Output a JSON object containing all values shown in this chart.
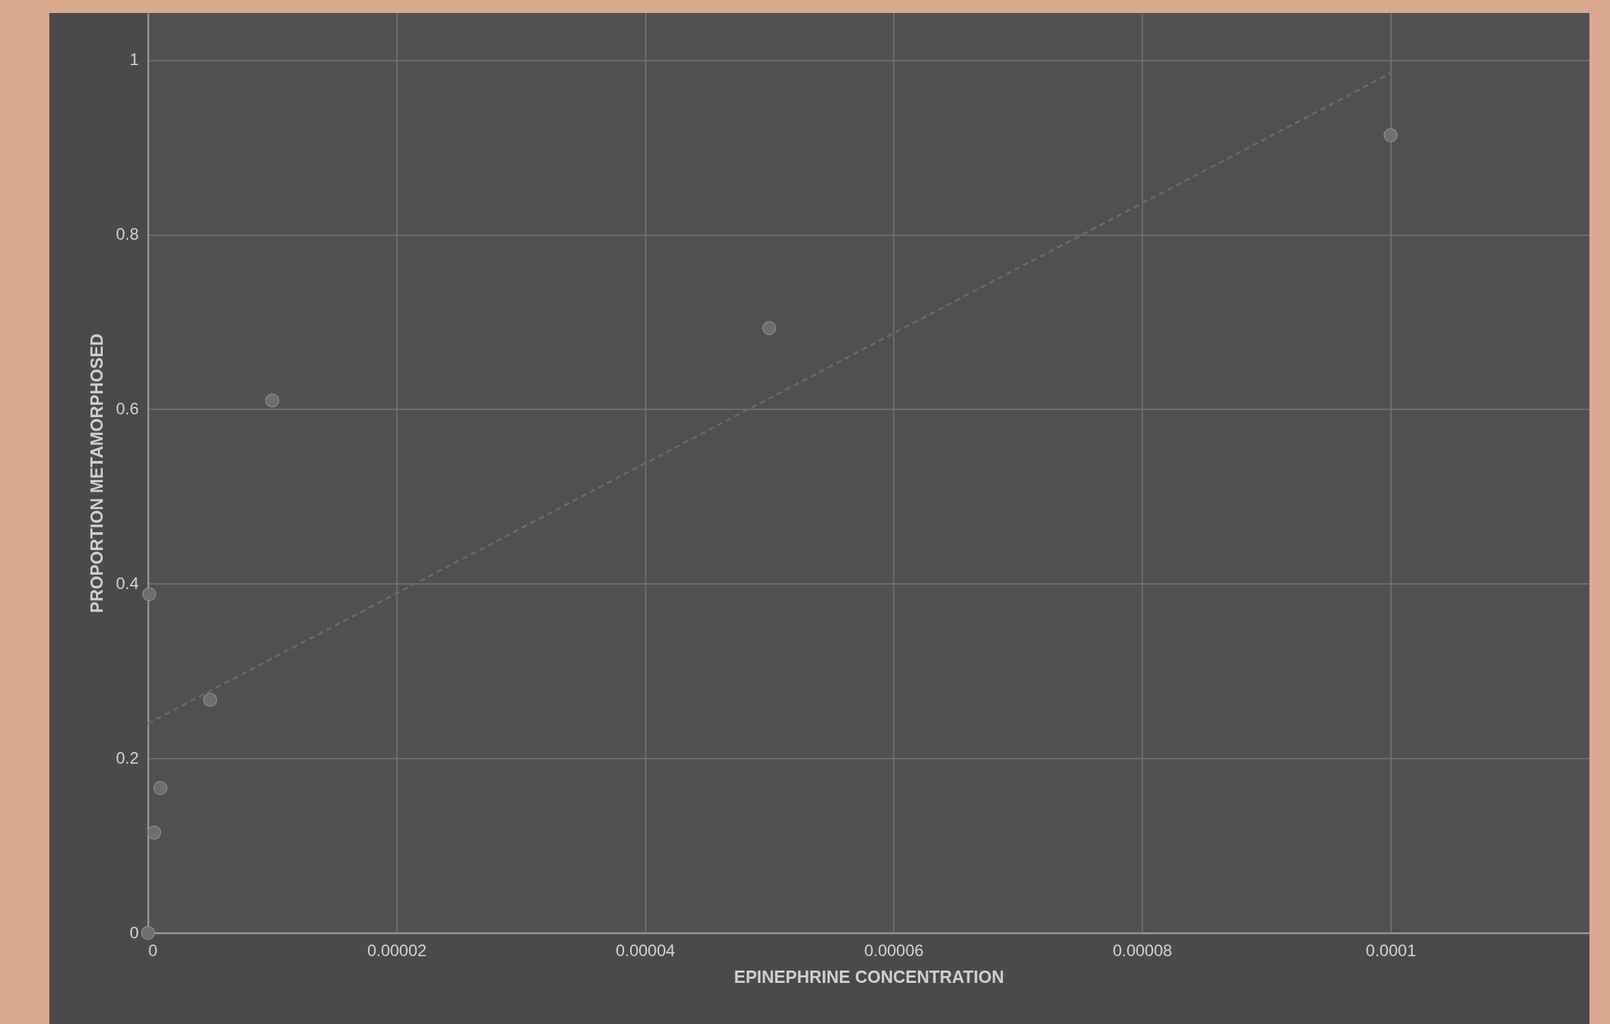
{
  "chart_data": {
    "type": "scatter",
    "xlabel": "EPINEPHRINE CONCENTRATION",
    "ylabel": "PROPORTION METAMORPHOSED",
    "series": [
      {
        "color": "#6e6e6e",
        "marker": "circle",
        "x": [
          0,
          1e-07,
          5e-07,
          1e-06,
          5e-06,
          1e-05,
          5e-05,
          0.0001
        ],
        "values": [
          0,
          0.388,
          0.115,
          0.166,
          0.267,
          0.61,
          0.693,
          0.914
        ]
      },
      {
        "type": "line",
        "color": "#6a6a6a",
        "line_style": "dashed",
        "marker": "none",
        "x": [
          0,
          0.0001
        ],
        "values": [
          0.24,
          0.985
        ]
      }
    ],
    "xlim": [
      0,
      0.000116
    ],
    "ylim": [
      0,
      1.054
    ],
    "xticks": [
      0,
      {
        "value": 2e-05,
        "label": "0.00002"
      },
      {
        "value": 4e-05,
        "label": "0.00004"
      },
      {
        "value": 6e-05,
        "label": "0.00006"
      },
      {
        "value": 8e-05,
        "label": "0.00008"
      },
      {
        "value": 0.0001,
        "label": "0.0001"
      }
    ],
    "yticks": [
      0,
      0.2,
      0.4,
      0.6,
      0.8,
      1
    ],
    "grid": true
  }
}
